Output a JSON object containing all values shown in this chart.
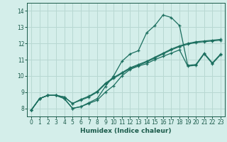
{
  "title": "",
  "xlabel": "Humidex (Indice chaleur)",
  "ylabel": "",
  "bg_color": "#d4eeea",
  "grid_color": "#b8d8d2",
  "line_color": "#1a6e5e",
  "xlim": [
    -0.5,
    23.5
  ],
  "ylim": [
    7.5,
    14.5
  ],
  "xticks": [
    0,
    1,
    2,
    3,
    4,
    5,
    6,
    7,
    8,
    9,
    10,
    11,
    12,
    13,
    14,
    15,
    16,
    17,
    18,
    19,
    20,
    21,
    22,
    23
  ],
  "yticks": [
    8,
    9,
    10,
    11,
    12,
    13,
    14
  ],
  "series": [
    [
      7.9,
      8.6,
      8.8,
      8.8,
      8.6,
      8.0,
      8.1,
      8.35,
      8.6,
      9.35,
      10.0,
      10.9,
      11.35,
      11.55,
      12.65,
      13.1,
      13.75,
      13.6,
      13.1,
      10.65,
      10.7,
      11.4,
      10.8,
      11.35
    ],
    [
      7.9,
      8.6,
      8.8,
      8.8,
      8.7,
      8.3,
      8.5,
      8.7,
      9.0,
      9.5,
      9.85,
      10.15,
      10.45,
      10.65,
      10.85,
      11.1,
      11.35,
      11.6,
      11.8,
      11.95,
      12.05,
      12.1,
      12.15,
      12.2
    ],
    [
      7.9,
      8.6,
      8.8,
      8.8,
      8.7,
      8.3,
      8.55,
      8.75,
      9.05,
      9.55,
      9.9,
      10.2,
      10.5,
      10.7,
      10.9,
      11.15,
      11.4,
      11.65,
      11.85,
      12.0,
      12.1,
      12.15,
      12.2,
      12.25
    ],
    [
      7.9,
      8.6,
      8.8,
      8.8,
      8.6,
      8.0,
      8.1,
      8.3,
      8.5,
      9.0,
      9.4,
      10.0,
      10.4,
      10.6,
      10.75,
      11.0,
      11.2,
      11.4,
      11.6,
      10.6,
      10.65,
      11.35,
      10.75,
      11.3
    ]
  ],
  "marker": "+",
  "markersize": 3.5,
  "linewidth": 0.9,
  "tick_fontsize": 5.5,
  "xlabel_fontsize": 6.5
}
